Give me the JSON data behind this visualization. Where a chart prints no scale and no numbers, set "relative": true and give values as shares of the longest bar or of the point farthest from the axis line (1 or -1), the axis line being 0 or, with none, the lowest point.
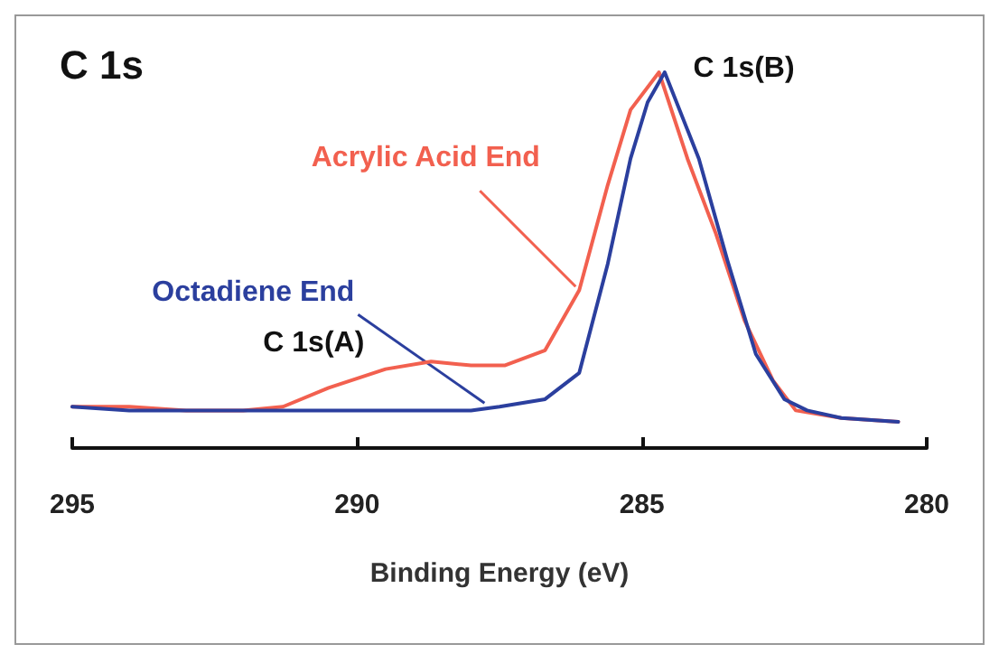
{
  "chart_data": {
    "type": "line",
    "title": "C 1s",
    "xlabel": "Binding Energy (eV)",
    "relative": true,
    "xlim": [
      295,
      280
    ],
    "xticks": [
      295,
      290,
      285,
      280
    ],
    "grid": false,
    "marker": "none",
    "line_style": "solid",
    "annotations": [
      {
        "text": "Acrylic Acid End",
        "x": 286.1,
        "y": 0.42
      },
      {
        "text": "Octadiene End",
        "x": 287.7,
        "y": 0.11
      },
      {
        "text": "C 1s(A)",
        "x": 288.7,
        "y": 0.23
      },
      {
        "text": "C 1s(B)",
        "x": 284.7,
        "y": 1
      }
    ],
    "series": [
      {
        "color": "#f2604f",
        "x": [
          295,
          294,
          293,
          292,
          291.3,
          290.5,
          289.5,
          288.7,
          288,
          287.4,
          286.7,
          286.1,
          285.6,
          285.2,
          284.7,
          284.2,
          283.7,
          283.2,
          282.7,
          282.3,
          281.5,
          280.5
        ],
        "values": [
          0.11,
          0.11,
          0.1,
          0.1,
          0.11,
          0.16,
          0.21,
          0.23,
          0.22,
          0.22,
          0.26,
          0.42,
          0.7,
          0.9,
          1,
          0.77,
          0.57,
          0.34,
          0.18,
          0.1,
          0.08,
          0.07
        ]
      },
      {
        "color": "#2b3f9e",
        "x": [
          295,
          294,
          293,
          292,
          291,
          290,
          289,
          288,
          287.5,
          286.7,
          286.1,
          285.6,
          285.2,
          284.9,
          284.6,
          284,
          283.5,
          283,
          282.5,
          282.1,
          281.5,
          280.5
        ],
        "values": [
          0.11,
          0.1,
          0.1,
          0.1,
          0.1,
          0.1,
          0.1,
          0.1,
          0.11,
          0.13,
          0.2,
          0.49,
          0.77,
          0.92,
          1,
          0.77,
          0.5,
          0.25,
          0.13,
          0.1,
          0.08,
          0.07
        ]
      }
    ]
  }
}
